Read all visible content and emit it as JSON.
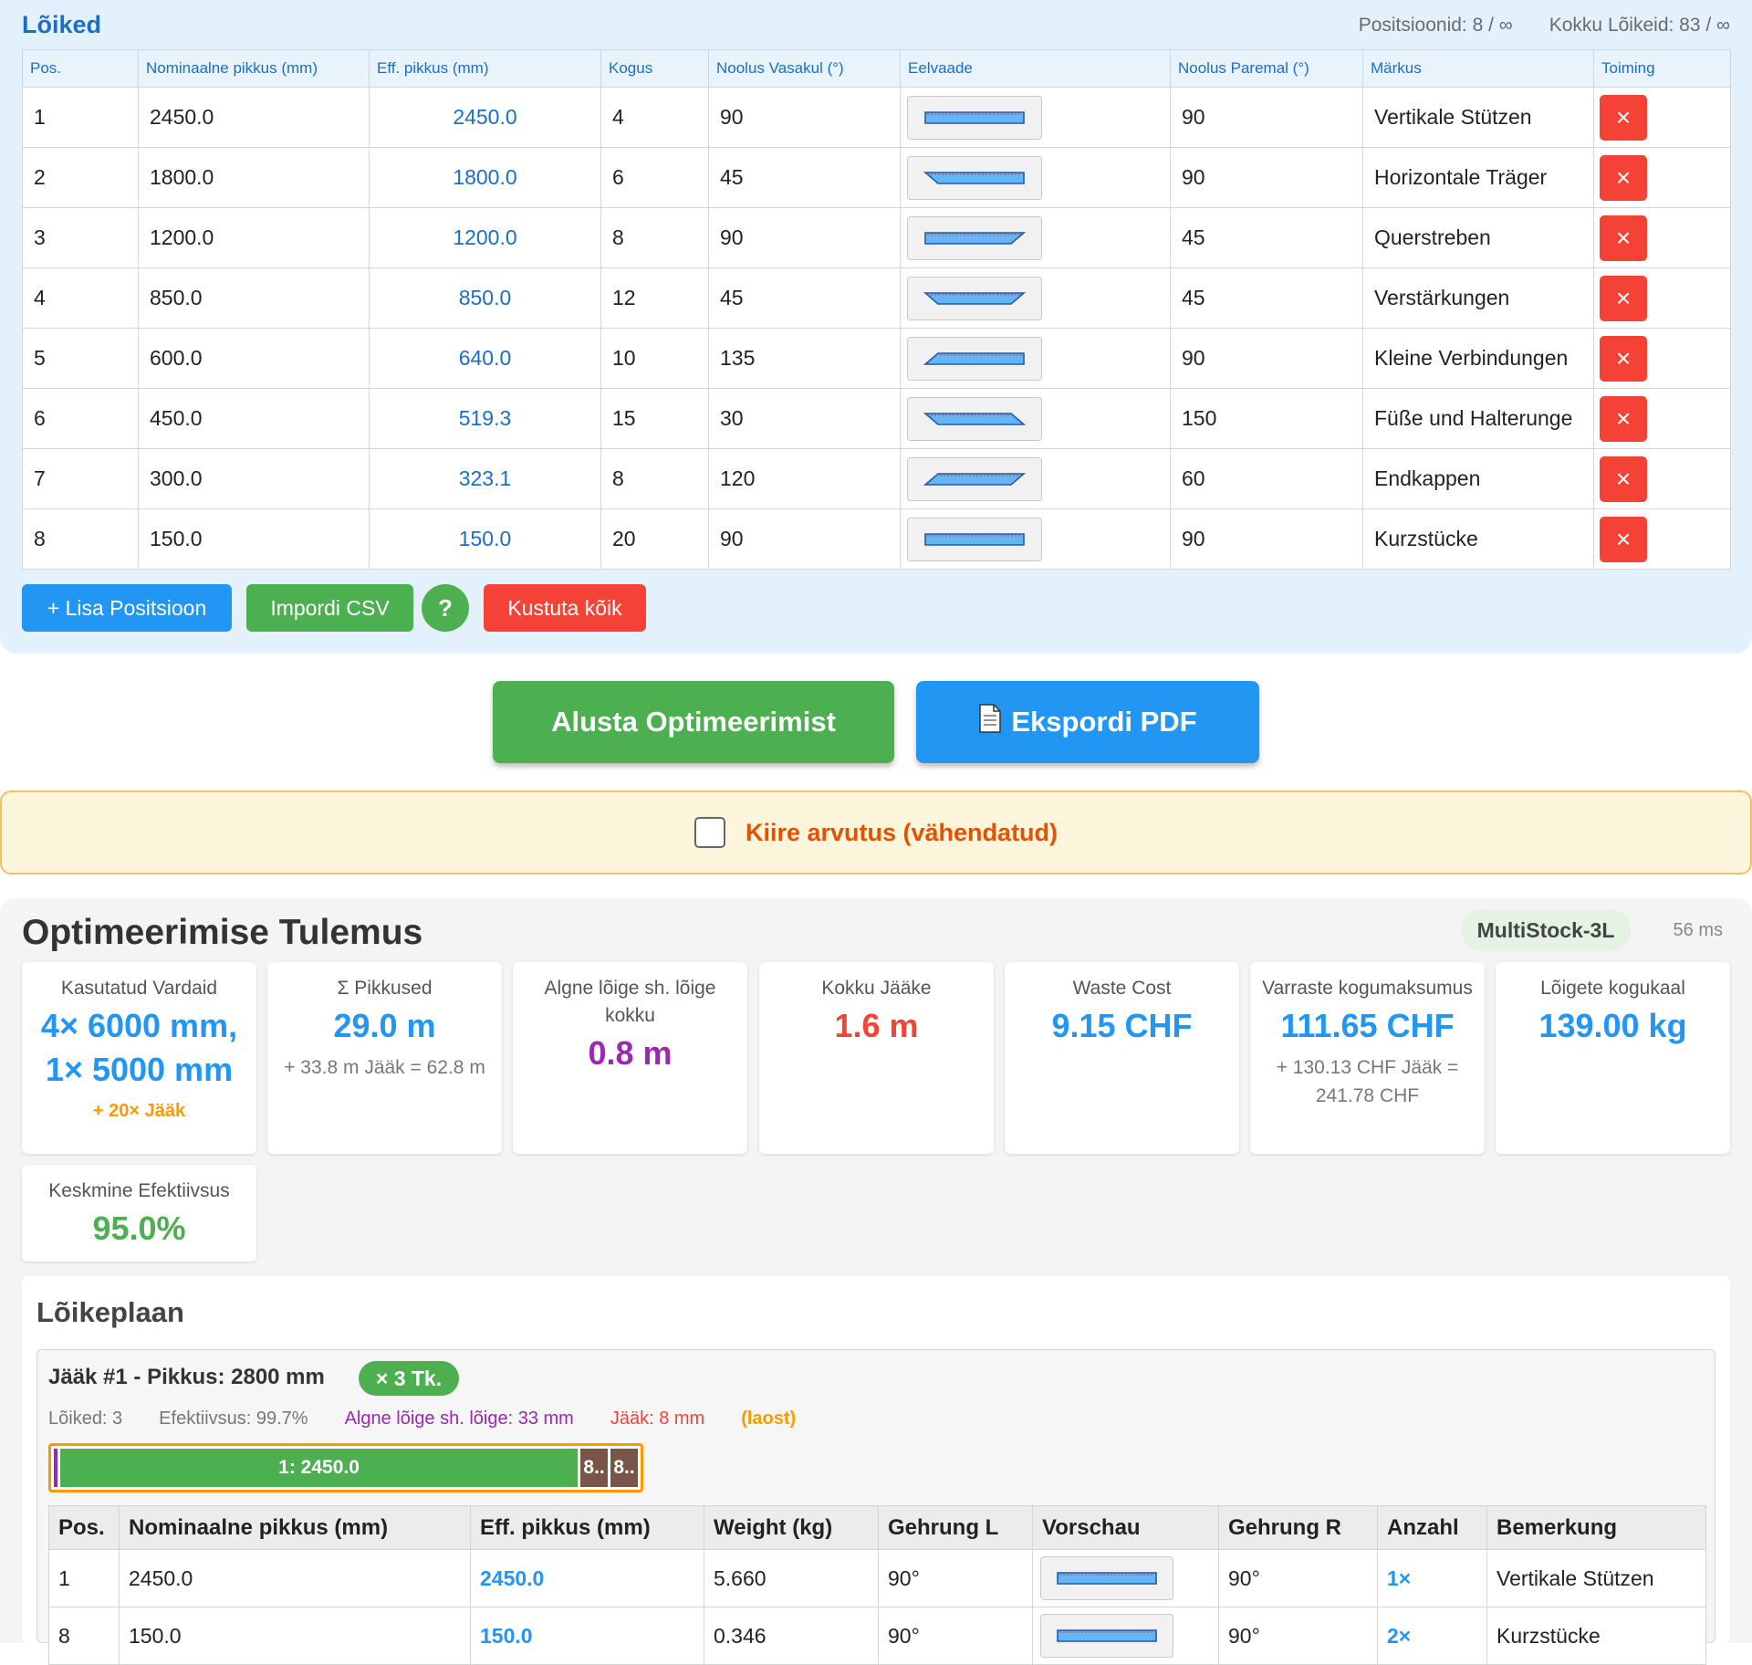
{
  "cuts": {
    "title": "Lõiked",
    "positions_stat": "Positsioonid: 8 / ∞",
    "total_stat": "Kokku Lõikeid: 83 / ∞",
    "headers": [
      "Pos.",
      "Nominaalne pikkus (mm)",
      "Eff. pikkus (mm)",
      "Kogus",
      "Noolus Vasakul (°)",
      "Eelvaade",
      "Noolus Paremal (°)",
      "Märkus",
      "Toiming"
    ],
    "rows": [
      {
        "pos": "1",
        "nominal": "2450.0",
        "eff": "2450.0",
        "qty": "4",
        "left": "90",
        "right": "90",
        "note": "Vertikale Stützen"
      },
      {
        "pos": "2",
        "nominal": "1800.0",
        "eff": "1800.0",
        "qty": "6",
        "left": "45",
        "right": "90",
        "note": "Horizontale Träger"
      },
      {
        "pos": "3",
        "nominal": "1200.0",
        "eff": "1200.0",
        "qty": "8",
        "left": "90",
        "right": "45",
        "note": "Querstreben"
      },
      {
        "pos": "4",
        "nominal": "850.0",
        "eff": "850.0",
        "qty": "12",
        "left": "45",
        "right": "45",
        "note": "Verstärkungen"
      },
      {
        "pos": "5",
        "nominal": "600.0",
        "eff": "640.0",
        "qty": "10",
        "left": "135",
        "right": "90",
        "note": "Kleine Verbindungen"
      },
      {
        "pos": "6",
        "nominal": "450.0",
        "eff": "519.3",
        "qty": "15",
        "left": "30",
        "right": "150",
        "note": "Füße und Halterunge"
      },
      {
        "pos": "7",
        "nominal": "300.0",
        "eff": "323.1",
        "qty": "8",
        "left": "120",
        "right": "60",
        "note": "Endkappen"
      },
      {
        "pos": "8",
        "nominal": "150.0",
        "eff": "150.0",
        "qty": "20",
        "left": "90",
        "right": "90",
        "note": "Kurzstücke"
      }
    ],
    "delete_icon": "×",
    "add_button": "+ Lisa Positsioon",
    "import_button": "Impordi CSV",
    "help_button": "?",
    "clear_button": "Kustuta kõik"
  },
  "actions": {
    "optimize_button": "Alusta Optimeerimist",
    "export_icon": "document-icon",
    "export_button": "Ekspordi PDF",
    "quick_label": "Kiire arvutus (vähendatud)",
    "quick_checked": false
  },
  "results": {
    "title": "Optimeerimise Tulemus",
    "algorithm": "MultiStock-3L",
    "time": "56 ms",
    "stats": [
      {
        "label": "Kasutatud Vardaid",
        "value": "4× 6000 mm, 1× 5000 mm",
        "sub": "+ 20× Jääk"
      },
      {
        "label": "Σ Pikkused",
        "value": "29.0 m",
        "sub": "+ 33.8 m Jääk = 62.8 m"
      },
      {
        "label": "Algne lõige sh. lõige kokku",
        "value": "0.8 m",
        "sub": ""
      },
      {
        "label": "Kokku Jääke",
        "value": "1.6 m",
        "sub": ""
      },
      {
        "label": "Waste Cost",
        "value": "9.15 CHF",
        "sub": ""
      },
      {
        "label": "Varraste kogumaksumus",
        "value": "111.65 CHF",
        "sub": "+ 130.13 CHF Jääk = 241.78 CHF"
      },
      {
        "label": "Lõigete kogukaal",
        "value": "139.00 kg",
        "sub": ""
      },
      {
        "label": "Keskmine Efektiivsus",
        "value": "95.0%",
        "sub": ""
      }
    ],
    "colors": {
      "blue": "#2196f3",
      "purple": "#9c27b0",
      "red": "#f44336",
      "green": "#4caf50",
      "orange": "#ff9800"
    }
  },
  "plan": {
    "title": "Lõikeplaan",
    "bar": {
      "heading": "Jääk #1 - Pikkus: 2800 mm",
      "qty_badge": "× 3 Tk.",
      "cuts": "Lõiked: 3",
      "efficiency": "Efektiivsus: 99.7%",
      "kerf": "Algne lõige sh. lõige: 33 mm",
      "waste": "Jääk: 8 mm",
      "stock_flag": "(laost)",
      "segments": [
        "1: 2450.0",
        "8..",
        "8.."
      ]
    },
    "headers": [
      "Pos.",
      "Nominaalne pikkus (mm)",
      "Eff. pikkus (mm)",
      "Weight (kg)",
      "Gehrung L",
      "Vorschau",
      "Gehrung R",
      "Anzahl",
      "Bemerkung"
    ],
    "rows": [
      {
        "pos": "1",
        "nominal": "2450.0",
        "eff": "2450.0",
        "weight": "5.660",
        "gl": "90°",
        "gr": "90°",
        "qty": "1×",
        "note": "Vertikale Stützen"
      },
      {
        "pos": "8",
        "nominal": "150.0",
        "eff": "150.0",
        "weight": "0.346",
        "gl": "90°",
        "gr": "90°",
        "qty": "2×",
        "note": "Kurzstücke"
      }
    ]
  }
}
